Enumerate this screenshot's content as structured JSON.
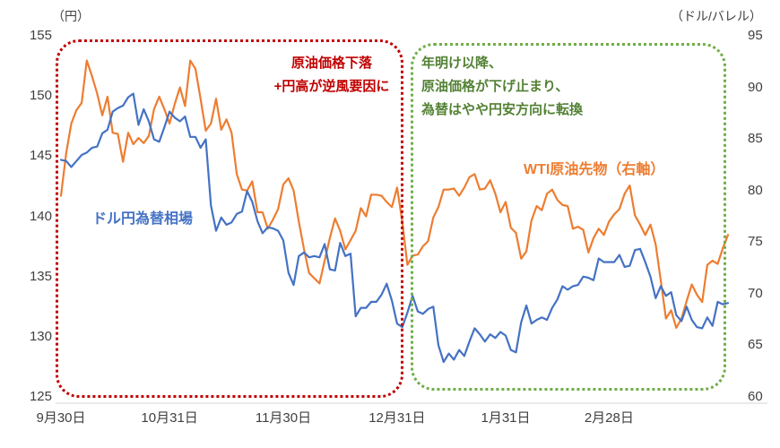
{
  "chart_data": {
    "type": "line",
    "title": "",
    "grid": false,
    "legend_position": "inline-labels",
    "left_axis": {
      "unit": "（円）",
      "min": 125,
      "max": 155,
      "ticks": [
        155,
        150,
        145,
        140,
        135,
        130,
        125
      ]
    },
    "right_axis": {
      "unit": "（ドル/バレル）",
      "min": 60,
      "max": 95,
      "ticks": [
        95,
        90,
        85,
        80,
        75,
        70,
        65,
        60
      ]
    },
    "x_tick_labels": [
      "9月30日",
      "10月31日",
      "11月30日",
      "12月31日",
      "1月31日",
      "2月28日"
    ],
    "x_tick_indices": [
      0,
      21,
      43,
      65,
      86,
      106
    ],
    "series": [
      {
        "name": "ドル円為替相場",
        "axis": "left",
        "color": "#4472c4",
        "values": [
          144.7,
          144.6,
          144.1,
          144.6,
          145.1,
          145.3,
          145.7,
          145.8,
          146.9,
          147.2,
          148.7,
          149.0,
          149.2,
          149.9,
          150.2,
          147.6,
          148.9,
          147.9,
          146.4,
          146.2,
          147.4,
          148.7,
          148.2,
          147.9,
          148.3,
          146.6,
          146.6,
          145.7,
          146.4,
          140.9,
          138.8,
          139.9,
          139.3,
          139.5,
          140.2,
          140.4,
          142.1,
          141.2,
          139.6,
          138.6,
          139.1,
          139.0,
          138.8,
          138.0,
          135.3,
          134.3,
          136.7,
          137.0,
          136.6,
          136.7,
          136.6,
          137.7,
          135.6,
          135.5,
          137.8,
          136.7,
          136.9,
          131.7,
          132.4,
          132.4,
          132.9,
          132.9,
          133.5,
          134.4,
          133.0,
          131.1,
          130.8,
          132.0,
          133.4,
          132.1,
          131.9,
          132.3,
          132.5,
          129.3,
          127.9,
          128.6,
          128.1,
          128.9,
          128.4,
          129.6,
          130.7,
          130.2,
          129.6,
          130.2,
          129.9,
          130.4,
          130.1,
          128.9,
          128.7,
          131.2,
          132.6,
          131.1,
          131.4,
          131.6,
          131.4,
          132.4,
          133.1,
          134.2,
          133.9,
          134.2,
          134.3,
          135.0,
          134.9,
          134.7,
          136.5,
          136.2,
          136.2,
          136.2,
          136.8,
          135.8,
          135.9,
          137.2,
          137.3,
          136.2,
          135.0,
          133.2,
          134.2,
          133.4,
          133.7,
          131.8,
          131.3,
          132.5,
          131.4,
          130.8,
          130.7,
          131.6,
          130.9,
          132.9,
          132.7,
          132.8
        ]
      },
      {
        "name": "WTI原油先物（右軸）",
        "axis": "right",
        "color": "#ed7d31",
        "values": [
          79.5,
          83.6,
          86.5,
          87.8,
          88.5,
          92.6,
          91.1,
          89.4,
          87.3,
          89.1,
          85.6,
          85.5,
          82.8,
          85.6,
          84.5,
          85.1,
          84.6,
          85.3,
          87.9,
          89.1,
          87.9,
          86.5,
          88.4,
          90.0,
          88.2,
          92.6,
          91.8,
          88.9,
          85.8,
          86.5,
          88.9,
          85.9,
          86.9,
          85.6,
          81.6,
          80.1,
          80.0,
          80.9,
          77.9,
          77.9,
          76.3,
          77.2,
          78.2,
          80.6,
          81.2,
          80.0,
          77.0,
          74.3,
          72.0,
          71.5,
          71.0,
          73.2,
          75.4,
          77.3,
          76.1,
          74.3,
          75.2,
          76.1,
          78.3,
          77.5,
          79.6,
          79.6,
          79.5,
          78.9,
          78.4,
          80.3,
          77.0,
          72.8,
          73.7,
          73.8,
          74.6,
          75.1,
          77.4,
          78.4,
          80.1,
          80.1,
          80.2,
          79.5,
          80.3,
          81.3,
          81.6,
          80.1,
          80.2,
          81.0,
          79.7,
          77.9,
          78.9,
          76.4,
          75.9,
          73.4,
          74.1,
          77.1,
          78.5,
          78.1,
          79.7,
          80.1,
          79.1,
          78.6,
          78.5,
          76.3,
          76.5,
          76.2,
          74.0,
          75.4,
          76.3,
          75.7,
          77.0,
          77.7,
          78.2,
          79.7,
          80.5,
          77.6,
          76.7,
          75.7,
          76.7,
          74.8,
          71.3,
          67.6,
          68.4,
          66.7,
          67.6,
          69.3,
          70.9,
          69.9,
          69.2,
          72.8,
          73.2,
          72.9,
          74.4,
          75.7
        ]
      }
    ],
    "annotations": {
      "red": {
        "lines": [
          "原油価格下落",
          "+円高が逆風要因に"
        ],
        "text_color": "#c00000",
        "box_color": "#c00000"
      },
      "green": {
        "lines": [
          "年明け以降、",
          "原油価格が下げ止まり、",
          "為替はやや円安方向に転換"
        ],
        "text_color": "#538135",
        "box_color": "#70ad47"
      }
    }
  }
}
